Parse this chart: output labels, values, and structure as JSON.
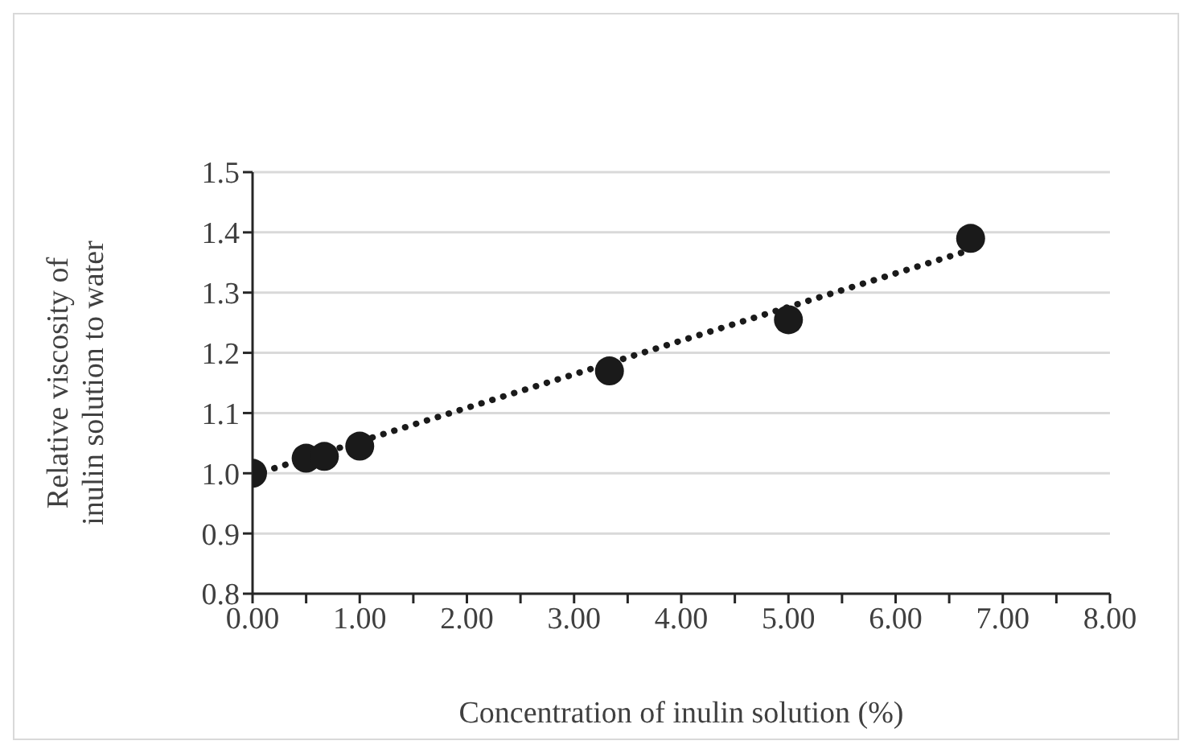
{
  "chart_data": {
    "type": "scatter",
    "xlabel": "Concentration of inulin solution (%)",
    "ylabel": "Relative viscosity of\ninulin solution to water",
    "series": [
      {
        "color": "#1a1a1a",
        "marker": "circle",
        "x": [
          0,
          0.5,
          0.67,
          1.0,
          3.33,
          5.0,
          6.7
        ],
        "values": [
          1.0,
          1.025,
          1.028,
          1.045,
          1.17,
          1.255,
          1.39
        ]
      },
      {
        "type": "line",
        "color": "#1a1a1a",
        "marker": "none",
        "line_style": "dotted",
        "x": [
          0,
          6.7
        ],
        "values": [
          0.997,
          1.371
        ]
      }
    ],
    "xlim": [
      0,
      8
    ],
    "xticks": [
      {
        "value": 0,
        "label": "0.00"
      },
      {
        "value": 0.5,
        "label": null
      },
      {
        "value": 1,
        "label": "1.00"
      },
      {
        "value": 1.5,
        "label": null
      },
      {
        "value": 2,
        "label": "2.00"
      },
      {
        "value": 2.5,
        "label": null
      },
      {
        "value": 3,
        "label": "3.00"
      },
      {
        "value": 3.5,
        "label": null
      },
      {
        "value": 4,
        "label": "4.00"
      },
      {
        "value": 4.5,
        "label": null
      },
      {
        "value": 5,
        "label": "5.00"
      },
      {
        "value": 5.5,
        "label": null
      },
      {
        "value": 6,
        "label": "6.00"
      },
      {
        "value": 6.5,
        "label": null
      },
      {
        "value": 7,
        "label": "7.00"
      },
      {
        "value": 7.5,
        "label": null
      },
      {
        "value": 8,
        "label": "8.00"
      }
    ],
    "ylim": [
      0.8,
      1.5
    ],
    "yticks": [
      0.8,
      0.9,
      {
        "value": 1.0,
        "label": "1.0"
      },
      1.1,
      1.2,
      1.3,
      1.4,
      1.5
    ],
    "grid": "y"
  }
}
